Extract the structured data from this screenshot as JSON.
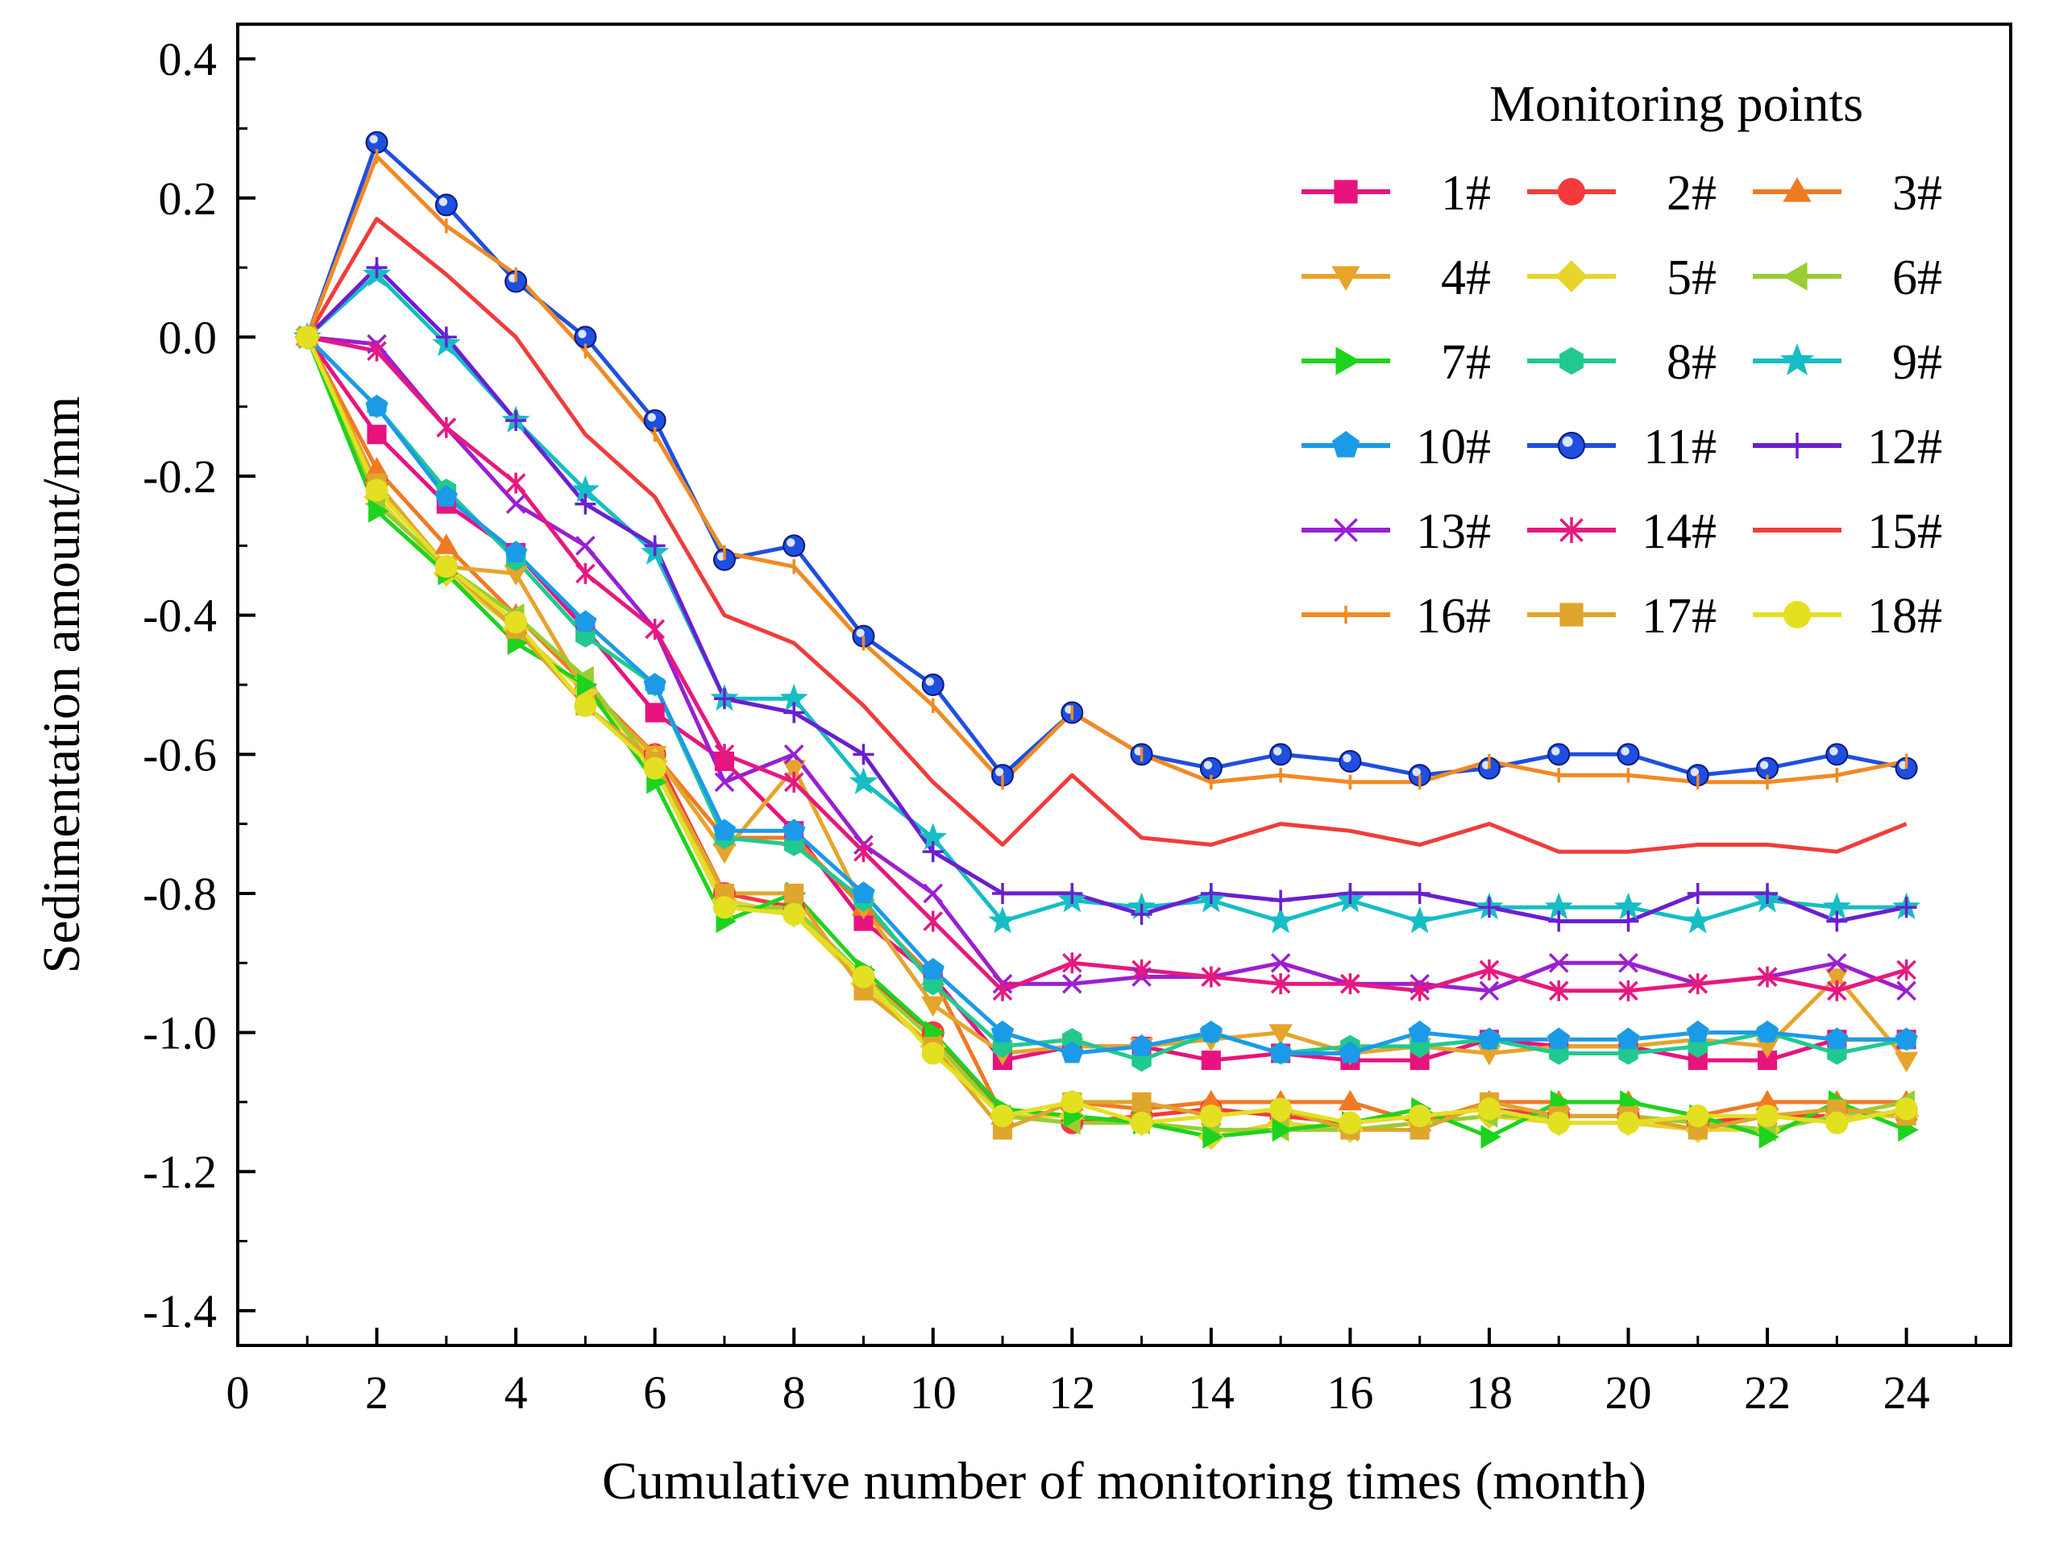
{
  "chart_data": {
    "type": "line",
    "xlabel": "Cumulative number of monitoring times (month)",
    "ylabel": "Sedimentation amount/mm",
    "xlim": [
      0,
      25.5
    ],
    "ylim": [
      -1.45,
      0.45
    ],
    "xticks": [
      0,
      2,
      4,
      6,
      8,
      10,
      12,
      14,
      16,
      18,
      20,
      22,
      24
    ],
    "yticks": [
      -1.4,
      -1.2,
      -1.0,
      -0.8,
      -0.6,
      -0.4,
      -0.2,
      0.0,
      0.2,
      0.4
    ],
    "ytick_labels": [
      "-1.4",
      "-1.2",
      "-1.0",
      "-0.8",
      "-0.6",
      "-0.4",
      "-0.2",
      "0.0",
      "0.2",
      "0.4"
    ],
    "legend_title": "Monitoring points",
    "legend_position": "top-right",
    "grid": false,
    "x": [
      1,
      2,
      3,
      4,
      5,
      6,
      7,
      8,
      9,
      10,
      11,
      12,
      13,
      14,
      15,
      16,
      17,
      18,
      19,
      20,
      21,
      22,
      23,
      24
    ],
    "series": [
      {
        "name": "1#",
        "color": "#E8137E",
        "marker": "square",
        "values": [
          0,
          -0.14,
          -0.24,
          -0.31,
          -0.42,
          -0.54,
          -0.61,
          -0.71,
          -0.84,
          -0.92,
          -1.04,
          -1.02,
          -1.02,
          -1.04,
          -1.03,
          -1.04,
          -1.04,
          -1.01,
          -1.02,
          -1.02,
          -1.04,
          -1.04,
          -1.01,
          -1.01
        ]
      },
      {
        "name": "2#",
        "color": "#F43A3A",
        "marker": "circle",
        "values": [
          0,
          -0.21,
          -0.33,
          -0.42,
          -0.51,
          -0.6,
          -0.8,
          -0.82,
          -0.92,
          -1.0,
          -1.12,
          -1.13,
          -1.12,
          -1.11,
          -1.12,
          -1.13,
          -1.12,
          -1.11,
          -1.12,
          -1.12,
          -1.13,
          -1.12,
          -1.12,
          -1.12
        ]
      },
      {
        "name": "3#",
        "color": "#F07A22",
        "marker": "triangle-up",
        "values": [
          0,
          -0.19,
          -0.3,
          -0.4,
          -0.5,
          -0.6,
          -0.72,
          -0.72,
          -0.82,
          -0.92,
          -1.12,
          -1.1,
          -1.11,
          -1.1,
          -1.1,
          -1.1,
          -1.13,
          -1.1,
          -1.1,
          -1.1,
          -1.12,
          -1.1,
          -1.1,
          -1.1
        ]
      },
      {
        "name": "4#",
        "color": "#E6A42B",
        "marker": "triangle-down",
        "values": [
          0,
          -0.22,
          -0.33,
          -0.34,
          -0.51,
          -0.6,
          -0.74,
          -0.62,
          -0.82,
          -0.96,
          -1.03,
          -1.02,
          -1.02,
          -1.01,
          -1.0,
          -1.03,
          -1.02,
          -1.03,
          -1.02,
          -1.02,
          -1.01,
          -1.02,
          -0.92,
          -1.04
        ]
      },
      {
        "name": "5#",
        "color": "#E8D42A",
        "marker": "diamond",
        "values": [
          0,
          -0.23,
          -0.34,
          -0.42,
          -0.51,
          -0.61,
          -0.81,
          -0.83,
          -0.93,
          -1.02,
          -1.12,
          -1.12,
          -1.13,
          -1.15,
          -1.13,
          -1.14,
          -1.13,
          -1.12,
          -1.13,
          -1.13,
          -1.14,
          -1.14,
          -1.12,
          -1.12
        ]
      },
      {
        "name": "6#",
        "color": "#9ACD32",
        "marker": "triangle-left",
        "values": [
          0,
          -0.24,
          -0.33,
          -0.4,
          -0.49,
          -0.62,
          -0.82,
          -0.82,
          -0.92,
          -1.01,
          -1.12,
          -1.13,
          -1.13,
          -1.14,
          -1.14,
          -1.14,
          -1.13,
          -1.12,
          -1.12,
          -1.12,
          -1.13,
          -1.14,
          -1.12,
          -1.1
        ]
      },
      {
        "name": "7#",
        "color": "#1ED31E",
        "marker": "triangle-right",
        "values": [
          0,
          -0.25,
          -0.34,
          -0.44,
          -0.5,
          -0.64,
          -0.84,
          -0.8,
          -0.91,
          -1.0,
          -1.11,
          -1.12,
          -1.13,
          -1.15,
          -1.14,
          -1.13,
          -1.11,
          -1.15,
          -1.1,
          -1.1,
          -1.12,
          -1.15,
          -1.1,
          -1.14
        ]
      },
      {
        "name": "8#",
        "color": "#21C98F",
        "marker": "hexagon",
        "values": [
          0,
          -0.1,
          -0.22,
          -0.32,
          -0.43,
          -0.5,
          -0.72,
          -0.73,
          -0.81,
          -0.93,
          -1.02,
          -1.01,
          -1.04,
          -1.0,
          -1.03,
          -1.02,
          -1.02,
          -1.01,
          -1.03,
          -1.03,
          -1.02,
          -1.0,
          -1.03,
          -1.01
        ]
      },
      {
        "name": "9#",
        "color": "#17BDC4",
        "marker": "star",
        "values": [
          0,
          0.09,
          -0.01,
          -0.12,
          -0.22,
          -0.31,
          -0.52,
          -0.52,
          -0.64,
          -0.72,
          -0.84,
          -0.81,
          -0.82,
          -0.81,
          -0.84,
          -0.81,
          -0.84,
          -0.82,
          -0.82,
          -0.82,
          -0.84,
          -0.81,
          -0.82,
          -0.82
        ]
      },
      {
        "name": "10#",
        "color": "#1B9AE8",
        "marker": "pentagon",
        "values": [
          0,
          -0.1,
          -0.23,
          -0.31,
          -0.41,
          -0.5,
          -0.71,
          -0.71,
          -0.8,
          -0.91,
          -1.0,
          -1.03,
          -1.02,
          -1.0,
          -1.03,
          -1.03,
          -1.0,
          -1.01,
          -1.01,
          -1.01,
          -1.0,
          -1.0,
          -1.01,
          -1.01
        ]
      },
      {
        "name": "11#",
        "color": "#1F4FE0",
        "marker": "ball",
        "values": [
          0,
          0.28,
          0.19,
          0.08,
          0.0,
          -0.12,
          -0.32,
          -0.3,
          -0.43,
          -0.5,
          -0.63,
          -0.54,
          -0.6,
          -0.62,
          -0.6,
          -0.61,
          -0.63,
          -0.62,
          -0.6,
          -0.6,
          -0.63,
          -0.62,
          -0.6,
          -0.62
        ]
      },
      {
        "name": "12#",
        "color": "#6A1FD1",
        "marker": "plus",
        "values": [
          0,
          0.1,
          0.0,
          -0.12,
          -0.24,
          -0.3,
          -0.52,
          -0.54,
          -0.6,
          -0.74,
          -0.8,
          -0.8,
          -0.83,
          -0.8,
          -0.81,
          -0.8,
          -0.8,
          -0.82,
          -0.84,
          -0.84,
          -0.8,
          -0.8,
          -0.84,
          -0.82
        ]
      },
      {
        "name": "13#",
        "color": "#9B1FD1",
        "marker": "x",
        "values": [
          0,
          -0.01,
          -0.13,
          -0.24,
          -0.3,
          -0.42,
          -0.64,
          -0.6,
          -0.73,
          -0.8,
          -0.93,
          -0.93,
          -0.92,
          -0.92,
          -0.9,
          -0.93,
          -0.93,
          -0.94,
          -0.9,
          -0.9,
          -0.93,
          -0.92,
          -0.9,
          -0.94
        ]
      },
      {
        "name": "14#",
        "color": "#E6197E",
        "marker": "asterisk",
        "values": [
          0,
          -0.02,
          -0.13,
          -0.21,
          -0.34,
          -0.42,
          -0.6,
          -0.64,
          -0.74,
          -0.84,
          -0.94,
          -0.9,
          -0.91,
          -0.92,
          -0.93,
          -0.93,
          -0.94,
          -0.91,
          -0.94,
          -0.94,
          -0.93,
          -0.92,
          -0.94,
          -0.91
        ]
      },
      {
        "name": "15#",
        "color": "#F03C3C",
        "marker": "none",
        "values": [
          0,
          0.17,
          0.09,
          0.0,
          -0.14,
          -0.23,
          -0.4,
          -0.44,
          -0.53,
          -0.64,
          -0.73,
          -0.63,
          -0.72,
          -0.73,
          -0.7,
          -0.71,
          -0.73,
          -0.7,
          -0.74,
          -0.74,
          -0.73,
          -0.73,
          -0.74,
          -0.7
        ]
      },
      {
        "name": "16#",
        "color": "#F08A24",
        "marker": "vline",
        "values": [
          0,
          0.26,
          0.16,
          0.09,
          -0.02,
          -0.14,
          -0.31,
          -0.33,
          -0.44,
          -0.53,
          -0.64,
          -0.54,
          -0.6,
          -0.64,
          -0.63,
          -0.64,
          -0.64,
          -0.61,
          -0.63,
          -0.63,
          -0.64,
          -0.64,
          -0.63,
          -0.61
        ]
      },
      {
        "name": "17#",
        "color": "#E0A52C",
        "marker": "square",
        "values": [
          0,
          -0.21,
          -0.33,
          -0.42,
          -0.53,
          -0.61,
          -0.8,
          -0.8,
          -0.94,
          -1.02,
          -1.14,
          -1.1,
          -1.1,
          -1.12,
          -1.11,
          -1.14,
          -1.14,
          -1.1,
          -1.12,
          -1.12,
          -1.14,
          -1.12,
          -1.11,
          -1.12
        ]
      },
      {
        "name": "18#",
        "color": "#E3E022",
        "marker": "circle",
        "values": [
          0,
          -0.22,
          -0.33,
          -0.41,
          -0.53,
          -0.62,
          -0.82,
          -0.83,
          -0.92,
          -1.03,
          -1.12,
          -1.1,
          -1.13,
          -1.12,
          -1.11,
          -1.13,
          -1.12,
          -1.11,
          -1.13,
          -1.13,
          -1.12,
          -1.12,
          -1.13,
          -1.11
        ]
      }
    ]
  }
}
